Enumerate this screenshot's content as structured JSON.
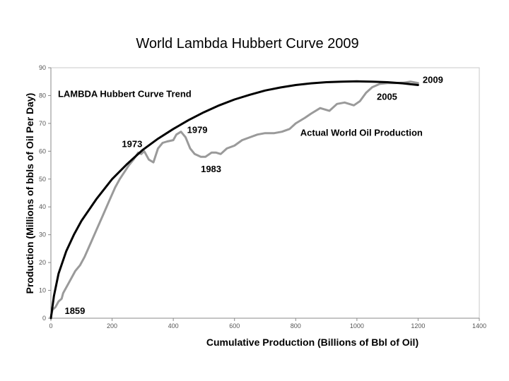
{
  "chart_data": {
    "type": "line",
    "title": "World Lambda Hubbert Curve 2009",
    "xlabel": "Cumulative Production (Billions of Bbl of Oil)",
    "ylabel": "Production (Millions of bbls of Oil Per Day)",
    "xlim": [
      0,
      1400
    ],
    "ylim": [
      0,
      90
    ],
    "x_ticks": [
      0,
      200,
      400,
      600,
      800,
      1000,
      1200,
      1400
    ],
    "y_ticks": [
      0,
      10,
      20,
      30,
      40,
      50,
      60,
      70,
      80,
      90
    ],
    "grid": false,
    "series": [
      {
        "name": "LAMBDA Hubbert Curve Trend",
        "color": "#000000",
        "points": [
          [
            0,
            0
          ],
          [
            10,
            8
          ],
          [
            25,
            16
          ],
          [
            50,
            24
          ],
          [
            75,
            30
          ],
          [
            100,
            35
          ],
          [
            150,
            43
          ],
          [
            200,
            50
          ],
          [
            250,
            55.5
          ],
          [
            300,
            60.5
          ],
          [
            350,
            64.5
          ],
          [
            400,
            68
          ],
          [
            450,
            71.2
          ],
          [
            500,
            74
          ],
          [
            550,
            76.5
          ],
          [
            600,
            78.6
          ],
          [
            650,
            80.3
          ],
          [
            700,
            81.8
          ],
          [
            750,
            82.9
          ],
          [
            800,
            83.8
          ],
          [
            850,
            84.4
          ],
          [
            900,
            84.8
          ],
          [
            950,
            85
          ],
          [
            1000,
            85.1
          ],
          [
            1050,
            85
          ],
          [
            1100,
            84.8
          ],
          [
            1150,
            84.4
          ],
          [
            1200,
            83.8
          ]
        ]
      },
      {
        "name": "Actual World Oil Production",
        "color": "#9a9a9a",
        "points": [
          [
            0,
            0.5
          ],
          [
            5,
            3
          ],
          [
            15,
            4
          ],
          [
            25,
            6
          ],
          [
            35,
            7
          ],
          [
            40,
            9
          ],
          [
            55,
            12
          ],
          [
            65,
            14
          ],
          [
            80,
            17
          ],
          [
            95,
            19
          ],
          [
            110,
            22
          ],
          [
            130,
            27
          ],
          [
            150,
            32
          ],
          [
            170,
            37
          ],
          [
            190,
            42
          ],
          [
            210,
            47
          ],
          [
            225,
            50
          ],
          [
            240,
            52.5
          ],
          [
            255,
            55
          ],
          [
            270,
            57
          ],
          [
            285,
            59.5
          ],
          [
            295,
            59
          ],
          [
            305,
            60
          ],
          [
            320,
            57
          ],
          [
            335,
            56
          ],
          [
            350,
            61
          ],
          [
            365,
            63
          ],
          [
            380,
            63.5
          ],
          [
            400,
            64
          ],
          [
            410,
            66
          ],
          [
            425,
            67
          ],
          [
            440,
            65
          ],
          [
            455,
            61
          ],
          [
            470,
            59
          ],
          [
            490,
            58
          ],
          [
            505,
            58
          ],
          [
            525,
            59.5
          ],
          [
            540,
            59.5
          ],
          [
            555,
            59
          ],
          [
            575,
            61
          ],
          [
            600,
            62
          ],
          [
            625,
            64
          ],
          [
            650,
            65
          ],
          [
            675,
            66
          ],
          [
            700,
            66.5
          ],
          [
            730,
            66.5
          ],
          [
            755,
            67
          ],
          [
            780,
            68
          ],
          [
            800,
            70
          ],
          [
            830,
            72
          ],
          [
            850,
            73.5
          ],
          [
            880,
            75.5
          ],
          [
            910,
            74.5
          ],
          [
            935,
            77
          ],
          [
            960,
            77.5
          ],
          [
            990,
            76.5
          ],
          [
            1010,
            78
          ],
          [
            1030,
            81
          ],
          [
            1050,
            83
          ],
          [
            1075,
            84.2
          ],
          [
            1100,
            84.5
          ],
          [
            1125,
            84.5
          ],
          [
            1150,
            84.6
          ],
          [
            1175,
            85
          ],
          [
            1200,
            84.5
          ]
        ]
      }
    ],
    "annotations": [
      {
        "text": "LAMBDA Hubbert Curve Trend",
        "x": 23,
        "y": 79.5
      },
      {
        "text": "Actual World Oil Production",
        "x": 815,
        "y": 65.5
      },
      {
        "text": "2009",
        "x": 1215,
        "y": 84.5
      },
      {
        "text": "2005",
        "x": 1065,
        "y": 78.5
      },
      {
        "text": "1979",
        "x": 445,
        "y": 66.5
      },
      {
        "text": "1973",
        "x": 232,
        "y": 61.5
      },
      {
        "text": "1983",
        "x": 490,
        "y": 52.5
      },
      {
        "text": "1859",
        "x": 45,
        "y": 1.5
      }
    ]
  }
}
